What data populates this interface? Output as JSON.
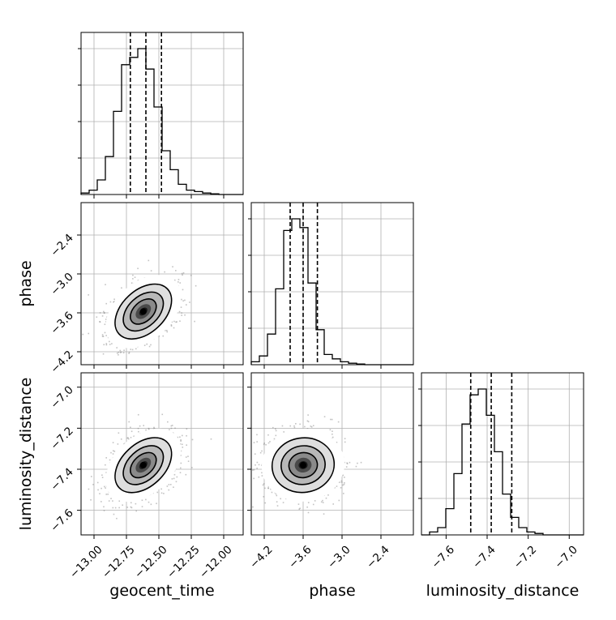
{
  "chart_data": {
    "type": "corner",
    "parameters": [
      {
        "name": "geocent_time",
        "label": "geocent_time",
        "range": [
          -13.1,
          -11.85
        ],
        "ticks": [
          -13.0,
          -12.75,
          -12.5,
          -12.25,
          -12.0
        ],
        "tick_labels": [
          "−13.00",
          "−12.75",
          "−12.50",
          "−12.25",
          "−12.00"
        ],
        "quantiles": [
          -12.72,
          -12.6,
          -12.48
        ],
        "hist": [
          0.01,
          0.03,
          0.1,
          0.26,
          0.57,
          0.89,
          0.94,
          1.0,
          0.86,
          0.6,
          0.3,
          0.17,
          0.07,
          0.03,
          0.02,
          0.01,
          0.005,
          0,
          0,
          0
        ]
      },
      {
        "name": "phase",
        "label": "phase",
        "range": [
          -4.4,
          -1.9
        ],
        "ticks": [
          -4.2,
          -3.6,
          -3.0,
          -2.4
        ],
        "tick_labels": [
          "−4.2",
          "−3.6",
          "−3.0",
          "−2.4"
        ],
        "quantiles": [
          -3.8,
          -3.6,
          -3.38
        ],
        "hist": [
          0.02,
          0.06,
          0.21,
          0.52,
          0.92,
          1.0,
          0.94,
          0.56,
          0.24,
          0.07,
          0.04,
          0.02,
          0.01,
          0.005,
          0,
          0,
          0,
          0,
          0,
          0
        ]
      },
      {
        "name": "luminosity_distance",
        "label": "luminosity_distance",
        "range": [
          -7.72,
          -6.93
        ],
        "ticks": [
          -7.6,
          -7.4,
          -7.2,
          -7.0
        ],
        "tick_labels": [
          "−7.6",
          "−7.4",
          "−7.2",
          "−7.0"
        ],
        "quantiles": [
          -7.48,
          -7.38,
          -7.28
        ],
        "hist": [
          0.0,
          0.02,
          0.05,
          0.18,
          0.42,
          0.76,
          0.96,
          1.0,
          0.82,
          0.57,
          0.28,
          0.12,
          0.05,
          0.02,
          0.01,
          0,
          0,
          0,
          0,
          0
        ]
      }
    ],
    "pairs": [
      {
        "x": "geocent_time",
        "y": "phase",
        "center": [
          -12.62,
          -3.58
        ]
      },
      {
        "x": "geocent_time",
        "y": "luminosity_distance",
        "center": [
          -12.62,
          -7.38
        ]
      },
      {
        "x": "phase",
        "y": "luminosity_distance",
        "center": [
          -3.6,
          -7.38
        ]
      }
    ],
    "grid": true
  }
}
